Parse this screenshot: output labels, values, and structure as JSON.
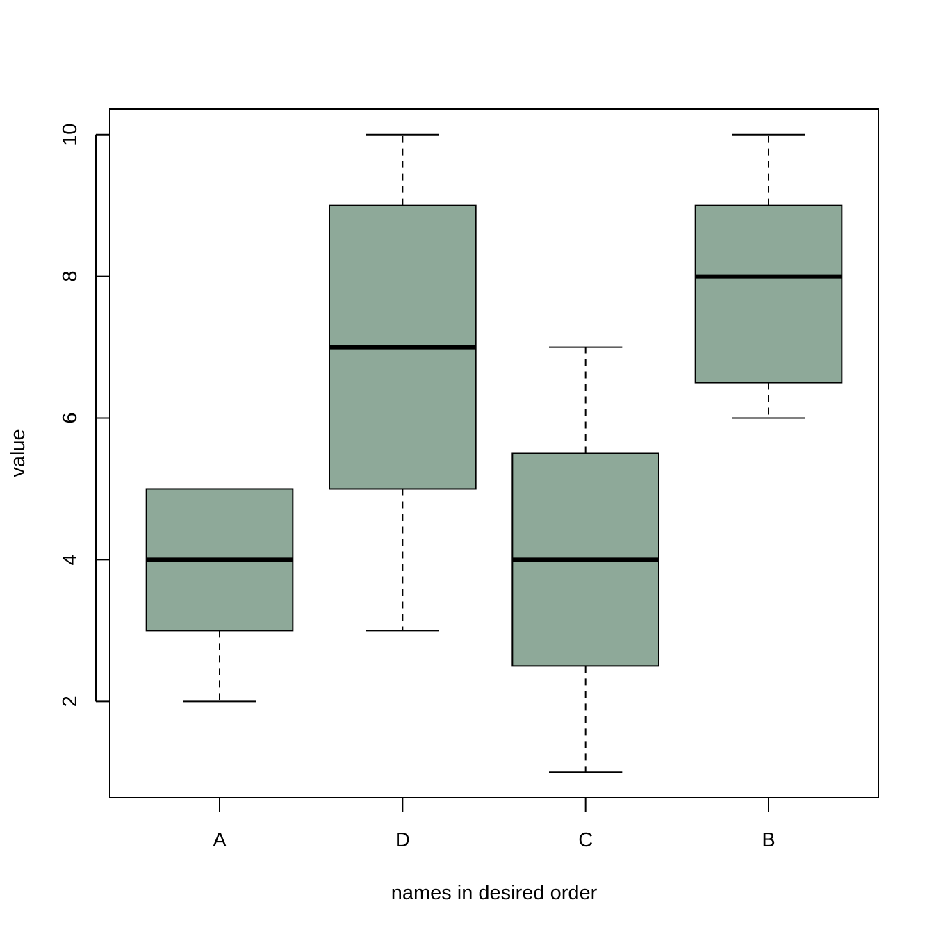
{
  "chart_data": {
    "type": "boxplot",
    "title": "",
    "xlabel": "names in desired order",
    "ylabel": "value",
    "categories": [
      "A",
      "D",
      "C",
      "B"
    ],
    "boxes": [
      {
        "category": "A",
        "min": 2,
        "q1": 3,
        "median": 4,
        "q3": 5,
        "max": 5
      },
      {
        "category": "D",
        "min": 3,
        "q1": 5,
        "median": 7,
        "q3": 9,
        "max": 10
      },
      {
        "category": "C",
        "min": 1,
        "q1": 2.5,
        "median": 4,
        "q3": 5.5,
        "max": 7
      },
      {
        "category": "B",
        "min": 6,
        "q1": 6.5,
        "median": 8,
        "q3": 9,
        "max": 10
      }
    ],
    "ylim": [
      0.64,
      10.36
    ],
    "yticks": [
      2,
      4,
      6,
      8,
      10
    ],
    "box_color": "#8ea999",
    "grid": false,
    "legend": "none"
  }
}
